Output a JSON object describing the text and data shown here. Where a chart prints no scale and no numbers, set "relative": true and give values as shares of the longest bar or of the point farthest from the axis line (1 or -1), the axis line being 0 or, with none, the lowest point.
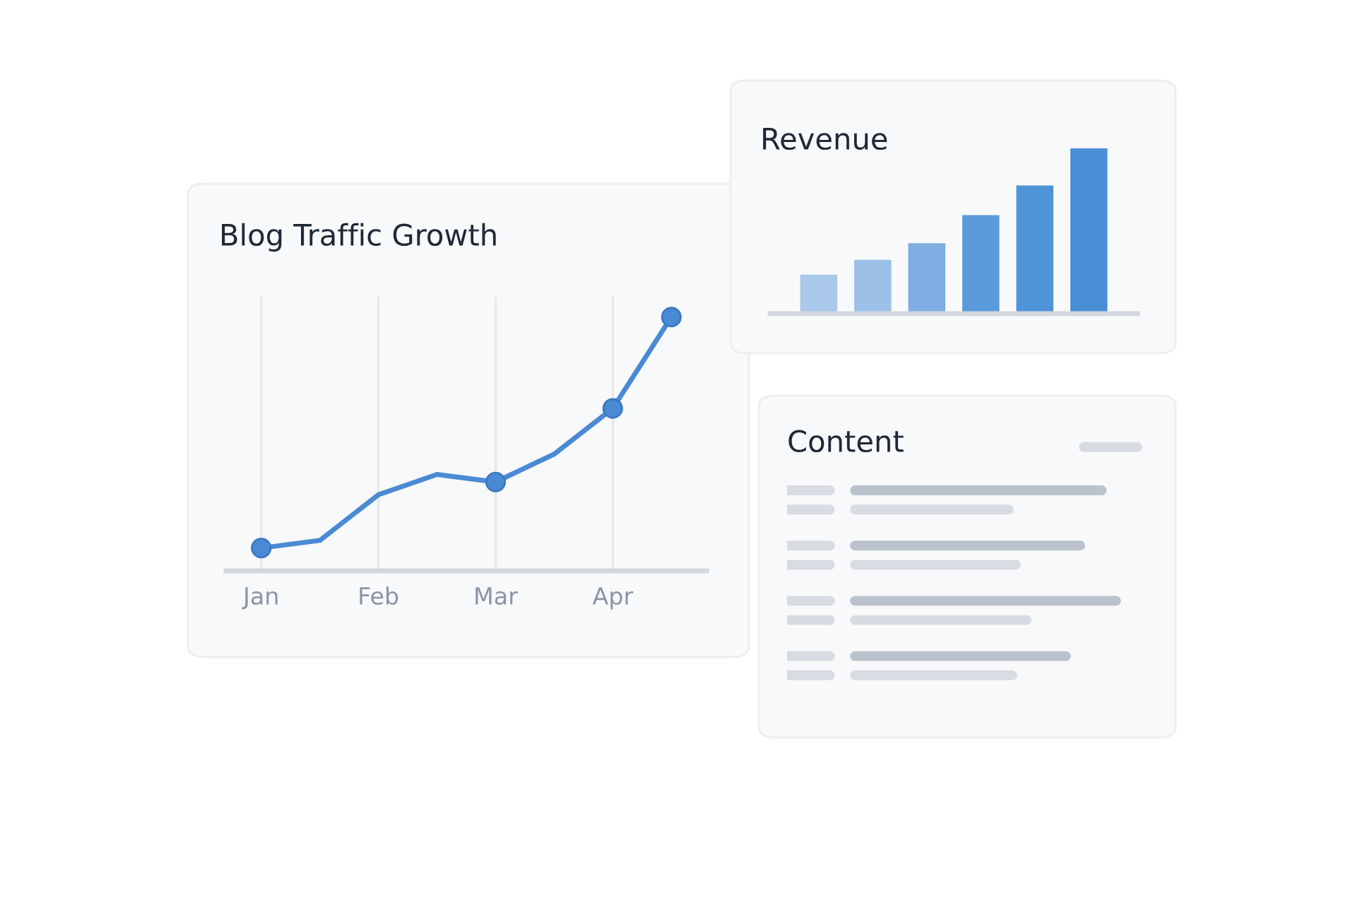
{
  "chart_data": [
    {
      "type": "line",
      "title": "Blog Traffic Growth",
      "relative": true,
      "grid": "x",
      "tick_labels": "x",
      "categories": [
        "Jan",
        null,
        "Feb",
        null,
        "Mar",
        null,
        "Apr",
        null
      ],
      "series": [
        {
          "type": "line",
          "color": "#4a8ad4",
          "marker": "none",
          "values": [
            0.09,
            0.12,
            0.3,
            0.38,
            0.35,
            0.46,
            0.64,
            1.0
          ]
        },
        {
          "type": "scatter",
          "color": "#4a8ad4",
          "marker": "circle",
          "values": [
            0.09,
            null,
            null,
            null,
            0.35,
            null,
            0.64,
            1.0
          ]
        }
      ]
    },
    {
      "type": "bar",
      "title": "Revenue",
      "relative": true,
      "tick_labels": false,
      "categories": [
        null,
        null,
        null,
        null,
        null,
        null
      ],
      "values": [
        0.23,
        0.32,
        0.42,
        0.59,
        0.77,
        1.0
      ],
      "colors": [
        "#a9c8ea",
        "#9cc0e8",
        "#7eaee2",
        "#5b9bdc",
        "#4f93d8",
        "#4a8fd6"
      ]
    },
    {
      "type": "other",
      "title": "Content"
    }
  ]
}
